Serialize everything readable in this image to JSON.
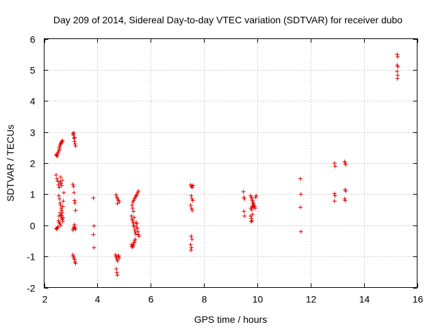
{
  "chart_data": {
    "type": "scatter",
    "title": "Day 209 of 2014, Sidereal Day-to-day VTEC variation (SDTVAR) for receiver dubo",
    "xlabel": "GPS time / hours",
    "ylabel": "SDTVAR / TECUs",
    "xlim": [
      2,
      16
    ],
    "ylim": [
      -2,
      6
    ],
    "xticks": [
      2,
      4,
      6,
      8,
      10,
      12,
      14,
      16
    ],
    "yticks": [
      -2,
      -1,
      0,
      1,
      2,
      3,
      4,
      5,
      6
    ],
    "grid": true,
    "marker": "plus",
    "marker_color": "#e00000",
    "series": [
      {
        "name": "SDTVAR",
        "points": [
          [
            2.45,
            2.28
          ],
          [
            2.47,
            2.25
          ],
          [
            2.49,
            2.22
          ],
          [
            2.51,
            2.3
          ],
          [
            2.53,
            2.35
          ],
          [
            2.55,
            2.4
          ],
          [
            2.57,
            2.5
          ],
          [
            2.59,
            2.55
          ],
          [
            2.61,
            2.6
          ],
          [
            2.63,
            2.63
          ],
          [
            2.65,
            2.67
          ],
          [
            2.67,
            2.7
          ],
          [
            2.69,
            2.72
          ],
          [
            2.58,
            2.45
          ],
          [
            2.45,
            1.62
          ],
          [
            2.48,
            1.5
          ],
          [
            2.51,
            1.42
          ],
          [
            2.54,
            1.3
          ],
          [
            2.57,
            1.22
          ],
          [
            2.6,
            1.4
          ],
          [
            2.63,
            1.35
          ],
          [
            2.66,
            1.28
          ],
          [
            2.62,
            1.55
          ],
          [
            2.68,
            1.45
          ],
          [
            2.55,
            0.95
          ],
          [
            2.58,
            0.85
          ],
          [
            2.6,
            0.72
          ],
          [
            2.62,
            0.65
          ],
          [
            2.64,
            0.55
          ],
          [
            2.66,
            0.48
          ],
          [
            2.6,
            0.4
          ],
          [
            2.63,
            0.3
          ],
          [
            2.66,
            0.22
          ],
          [
            2.69,
            0.18
          ],
          [
            2.71,
            0.25
          ],
          [
            2.56,
            0.1
          ],
          [
            2.59,
            0.05
          ],
          [
            2.62,
            0.0
          ],
          [
            2.65,
            0.32
          ],
          [
            2.68,
            0.4
          ],
          [
            2.7,
            0.6
          ],
          [
            2.72,
            0.78
          ],
          [
            2.74,
            1.05
          ],
          [
            2.7,
            0.12
          ],
          [
            2.45,
            -0.1
          ],
          [
            2.48,
            -0.12
          ],
          [
            2.5,
            -0.08
          ],
          [
            2.52,
            -0.05
          ],
          [
            2.54,
            0.15
          ],
          [
            2.56,
            0.3
          ],
          [
            3.08,
            2.95
          ],
          [
            3.1,
            2.9
          ],
          [
            3.12,
            2.8
          ],
          [
            3.14,
            2.7
          ],
          [
            3.16,
            2.62
          ],
          [
            3.18,
            2.55
          ],
          [
            3.12,
            2.97
          ],
          [
            3.15,
            2.82
          ],
          [
            3.08,
            1.32
          ],
          [
            3.1,
            1.25
          ],
          [
            3.12,
            1.05
          ],
          [
            3.14,
            0.8
          ],
          [
            3.16,
            0.72
          ],
          [
            3.18,
            0.48
          ],
          [
            3.08,
            -0.15
          ],
          [
            3.1,
            -0.1
          ],
          [
            3.12,
            -0.05
          ],
          [
            3.14,
            0.02
          ],
          [
            3.16,
            -0.08
          ],
          [
            3.18,
            -0.12
          ],
          [
            3.08,
            -0.95
          ],
          [
            3.1,
            -1.0
          ],
          [
            3.12,
            -1.05
          ],
          [
            3.14,
            -1.1
          ],
          [
            3.16,
            -1.18
          ],
          [
            3.18,
            -1.22
          ],
          [
            3.85,
            0.88
          ],
          [
            3.87,
            -0.02
          ],
          [
            3.85,
            -0.3
          ],
          [
            3.87,
            -0.72
          ],
          [
            4.7,
            0.98
          ],
          [
            4.73,
            0.9
          ],
          [
            4.76,
            0.85
          ],
          [
            4.79,
            0.8
          ],
          [
            4.82,
            0.75
          ],
          [
            4.75,
            0.7
          ],
          [
            4.68,
            -0.95
          ],
          [
            4.7,
            -1.0
          ],
          [
            4.72,
            -1.05
          ],
          [
            4.74,
            -1.1
          ],
          [
            4.76,
            -1.15
          ],
          [
            4.78,
            -1.0
          ],
          [
            4.8,
            -0.98
          ],
          [
            4.82,
            -1.05
          ],
          [
            4.71,
            -1.4
          ],
          [
            4.73,
            -1.52
          ],
          [
            4.75,
            -1.6
          ],
          [
            5.3,
            0.65
          ],
          [
            5.33,
            0.75
          ],
          [
            5.36,
            0.8
          ],
          [
            5.39,
            0.85
          ],
          [
            5.42,
            0.9
          ],
          [
            5.45,
            0.95
          ],
          [
            5.48,
            0.98
          ],
          [
            5.51,
            1.05
          ],
          [
            5.54,
            1.1
          ],
          [
            5.32,
            0.55
          ],
          [
            5.35,
            0.45
          ],
          [
            5.28,
            0.3
          ],
          [
            5.3,
            0.2
          ],
          [
            5.32,
            0.15
          ],
          [
            5.34,
            0.08
          ],
          [
            5.36,
            0.0
          ],
          [
            5.38,
            -0.05
          ],
          [
            5.4,
            -0.15
          ],
          [
            5.42,
            -0.22
          ],
          [
            5.44,
            -0.28
          ],
          [
            5.46,
            -0.05
          ],
          [
            5.48,
            0.05
          ],
          [
            5.5,
            -0.1
          ],
          [
            5.52,
            -0.2
          ],
          [
            5.54,
            -0.3
          ],
          [
            5.56,
            -0.35
          ],
          [
            5.45,
            0.1
          ],
          [
            5.38,
            0.25
          ],
          [
            5.28,
            -0.62
          ],
          [
            5.3,
            -0.68
          ],
          [
            5.32,
            -0.7
          ],
          [
            5.34,
            -0.65
          ],
          [
            5.36,
            -0.6
          ],
          [
            5.38,
            -0.55
          ],
          [
            5.4,
            -0.5
          ],
          [
            5.42,
            -0.45
          ],
          [
            7.5,
            1.3
          ],
          [
            7.53,
            1.25
          ],
          [
            7.56,
            1.22
          ],
          [
            7.59,
            1.28
          ],
          [
            7.52,
            0.95
          ],
          [
            7.55,
            0.85
          ],
          [
            7.58,
            0.8
          ],
          [
            7.5,
            0.65
          ],
          [
            7.53,
            0.55
          ],
          [
            7.56,
            0.48
          ],
          [
            7.52,
            -0.35
          ],
          [
            7.55,
            -0.45
          ],
          [
            7.5,
            -0.62
          ],
          [
            7.53,
            -0.72
          ],
          [
            7.51,
            -0.8
          ],
          [
            9.48,
            1.08
          ],
          [
            9.5,
            0.9
          ],
          [
            9.52,
            0.85
          ],
          [
            9.5,
            0.45
          ],
          [
            9.52,
            0.3
          ],
          [
            9.75,
            0.95
          ],
          [
            9.78,
            0.9
          ],
          [
            9.8,
            0.85
          ],
          [
            9.82,
            0.8
          ],
          [
            9.84,
            0.75
          ],
          [
            9.86,
            0.7
          ],
          [
            9.88,
            0.65
          ],
          [
            9.9,
            0.6
          ],
          [
            9.92,
            0.55
          ],
          [
            9.94,
            0.9
          ],
          [
            9.96,
            0.95
          ],
          [
            9.76,
            0.55
          ],
          [
            9.79,
            0.5
          ],
          [
            9.81,
            0.62
          ],
          [
            9.83,
            0.7
          ],
          [
            9.85,
            0.58
          ],
          [
            9.75,
            0.3
          ],
          [
            9.78,
            0.22
          ],
          [
            9.8,
            0.15
          ],
          [
            9.77,
            0.12
          ],
          [
            9.82,
            0.35
          ],
          [
            11.62,
            1.5
          ],
          [
            11.64,
            1.0
          ],
          [
            11.62,
            0.58
          ],
          [
            11.64,
            -0.2
          ],
          [
            12.9,
            2.0
          ],
          [
            12.92,
            1.9
          ],
          [
            12.9,
            1.02
          ],
          [
            12.92,
            0.95
          ],
          [
            12.9,
            0.78
          ],
          [
            13.28,
            2.05
          ],
          [
            13.3,
            2.0
          ],
          [
            13.32,
            1.95
          ],
          [
            13.3,
            1.15
          ],
          [
            13.32,
            1.1
          ],
          [
            13.28,
            0.85
          ],
          [
            13.3,
            0.8
          ],
          [
            15.25,
            5.5
          ],
          [
            15.27,
            5.42
          ],
          [
            15.25,
            5.15
          ],
          [
            15.28,
            5.1
          ],
          [
            15.25,
            4.95
          ],
          [
            15.27,
            4.82
          ],
          [
            15.26,
            4.72
          ]
        ]
      }
    ]
  }
}
